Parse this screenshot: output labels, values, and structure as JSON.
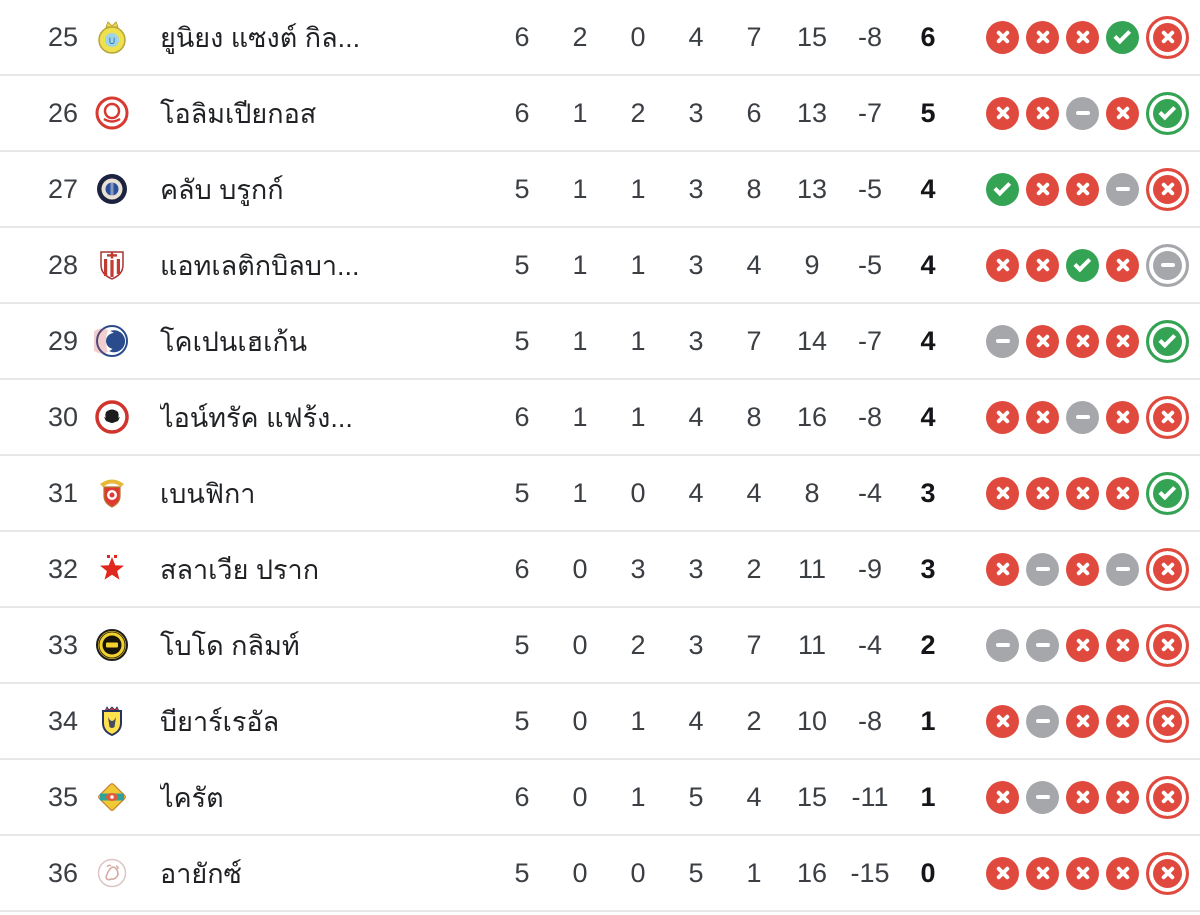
{
  "colors": {
    "win": "#34a353",
    "loss": "#e0493d",
    "draw": "#a5a7ab"
  },
  "form_icon_names": {
    "win": "check-icon",
    "loss": "x-icon",
    "draw": "dash-icon"
  },
  "table": {
    "rows": [
      {
        "rank": "25",
        "team": "ยูนิยง แซงต์ กิล...",
        "logo": "union-sg",
        "stats": [
          "6",
          "2",
          "0",
          "4",
          "7",
          "15",
          "-8"
        ],
        "points": "6",
        "form": [
          "loss",
          "loss",
          "loss",
          "win",
          "loss"
        ]
      },
      {
        "rank": "26",
        "team": "โอลิมเปียกอส",
        "logo": "olympiacos",
        "stats": [
          "6",
          "1",
          "2",
          "3",
          "6",
          "13",
          "-7"
        ],
        "points": "5",
        "form": [
          "loss",
          "loss",
          "draw",
          "loss",
          "win"
        ]
      },
      {
        "rank": "27",
        "team": "คลับ บรูกก์",
        "logo": "club-brugge",
        "stats": [
          "5",
          "1",
          "1",
          "3",
          "8",
          "13",
          "-5"
        ],
        "points": "4",
        "form": [
          "win",
          "loss",
          "loss",
          "draw",
          "loss"
        ]
      },
      {
        "rank": "28",
        "team": "แอทเลติกบิลบา...",
        "logo": "athletic-bilbao",
        "stats": [
          "5",
          "1",
          "1",
          "3",
          "4",
          "9",
          "-5"
        ],
        "points": "4",
        "form": [
          "loss",
          "loss",
          "win",
          "loss",
          "draw"
        ]
      },
      {
        "rank": "29",
        "team": "โคเปนเฮเก้น",
        "logo": "copenhagen",
        "stats": [
          "5",
          "1",
          "1",
          "3",
          "7",
          "14",
          "-7"
        ],
        "points": "4",
        "form": [
          "draw",
          "loss",
          "loss",
          "loss",
          "win"
        ]
      },
      {
        "rank": "30",
        "team": "ไอน์ทรัค แฟร้ง...",
        "logo": "eintracht-frankfurt",
        "stats": [
          "6",
          "1",
          "1",
          "4",
          "8",
          "16",
          "-8"
        ],
        "points": "4",
        "form": [
          "loss",
          "loss",
          "draw",
          "loss",
          "loss"
        ]
      },
      {
        "rank": "31",
        "team": "เบนฟิกา",
        "logo": "benfica",
        "stats": [
          "5",
          "1",
          "0",
          "4",
          "4",
          "8",
          "-4"
        ],
        "points": "3",
        "form": [
          "loss",
          "loss",
          "loss",
          "loss",
          "win"
        ]
      },
      {
        "rank": "32",
        "team": "สลาเวีย ปราก",
        "logo": "slavia-prague",
        "stats": [
          "6",
          "0",
          "3",
          "3",
          "2",
          "11",
          "-9"
        ],
        "points": "3",
        "form": [
          "loss",
          "draw",
          "loss",
          "draw",
          "loss"
        ]
      },
      {
        "rank": "33",
        "team": "โบโด กลิมท์",
        "logo": "bodo-glimt",
        "stats": [
          "5",
          "0",
          "2",
          "3",
          "7",
          "11",
          "-4"
        ],
        "points": "2",
        "form": [
          "draw",
          "draw",
          "loss",
          "loss",
          "loss"
        ]
      },
      {
        "rank": "34",
        "team": "บียาร์เรอัล",
        "logo": "villarreal",
        "stats": [
          "5",
          "0",
          "1",
          "4",
          "2",
          "10",
          "-8"
        ],
        "points": "1",
        "form": [
          "loss",
          "draw",
          "loss",
          "loss",
          "loss"
        ]
      },
      {
        "rank": "35",
        "team": "ไครัต",
        "logo": "kairat",
        "stats": [
          "6",
          "0",
          "1",
          "5",
          "4",
          "15",
          "-11"
        ],
        "points": "1",
        "form": [
          "loss",
          "draw",
          "loss",
          "loss",
          "loss"
        ]
      },
      {
        "rank": "36",
        "team": "อายักซ์",
        "logo": "ajax",
        "stats": [
          "5",
          "0",
          "0",
          "5",
          "1",
          "16",
          "-15"
        ],
        "points": "0",
        "form": [
          "loss",
          "loss",
          "loss",
          "loss",
          "loss"
        ]
      }
    ]
  }
}
